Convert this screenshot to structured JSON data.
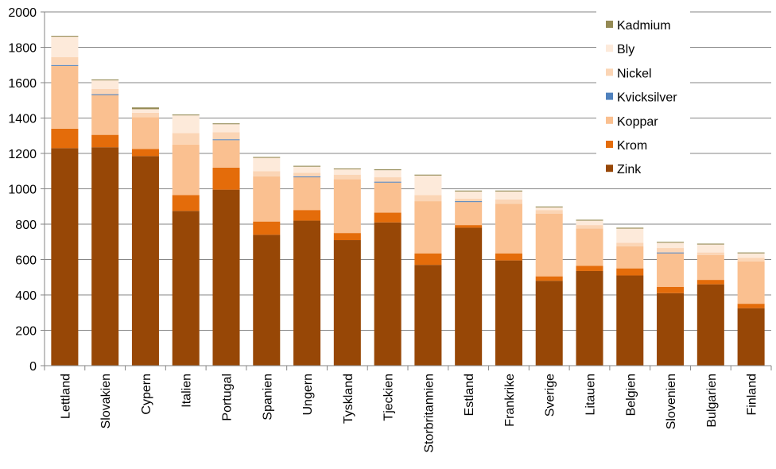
{
  "chart_data": {
    "type": "bar",
    "stacked": true,
    "categories": [
      "Lettland",
      "Slovakien",
      "Cypern",
      "Italien",
      "Portugal",
      "Spanien",
      "Ungern",
      "Tyskland",
      "Tjeckien",
      "Storbritannien",
      "Estland",
      "Frankrike",
      "Sverige",
      "Litauen",
      "Belgien",
      "Slovenien",
      "Bulgarien",
      "Finland"
    ],
    "series": [
      {
        "name": "Zink",
        "color": "#974706",
        "values": [
          1230,
          1235,
          1185,
          875,
          995,
          740,
          820,
          710,
          810,
          570,
          780,
          595,
          480,
          535,
          510,
          410,
          460,
          325
        ]
      },
      {
        "name": "Krom",
        "color": "#E46C0A",
        "values": [
          110,
          70,
          40,
          90,
          125,
          75,
          60,
          40,
          55,
          65,
          15,
          40,
          25,
          30,
          40,
          35,
          25,
          25
        ]
      },
      {
        "name": "Koppar",
        "color": "#FAC090",
        "values": [
          355,
          225,
          180,
          285,
          155,
          255,
          185,
          305,
          170,
          295,
          130,
          280,
          355,
          210,
          125,
          190,
          140,
          240
        ]
      },
      {
        "name": "Kvicksilver",
        "color": "#4F81BD",
        "values": [
          5,
          5,
          0,
          0,
          5,
          0,
          5,
          0,
          5,
          0,
          5,
          0,
          0,
          0,
          0,
          5,
          0,
          0
        ]
      },
      {
        "name": "Nickel",
        "color": "#FBD5B5",
        "values": [
          45,
          30,
          25,
          65,
          40,
          30,
          20,
          25,
          25,
          35,
          15,
          25,
          20,
          20,
          20,
          25,
          15,
          20
        ]
      },
      {
        "name": "Bly",
        "color": "#FDEADA",
        "values": [
          115,
          48,
          20,
          100,
          45,
          75,
          35,
          30,
          40,
          110,
          40,
          45,
          15,
          25,
          80,
          30,
          45,
          25
        ]
      },
      {
        "name": "Kadmium",
        "color": "#948A54",
        "values": [
          5,
          5,
          10,
          5,
          5,
          5,
          5,
          5,
          5,
          5,
          5,
          5,
          5,
          5,
          5,
          5,
          5,
          5
        ]
      }
    ],
    "ylim": [
      0,
      2000
    ],
    "yticks": [
      0,
      200,
      400,
      600,
      800,
      1000,
      1200,
      1400,
      1600,
      1800,
      2000
    ],
    "grid": true,
    "legend": {
      "placement": "top-right",
      "order": [
        "Kadmium",
        "Bly",
        "Nickel",
        "Kvicksilver",
        "Koppar",
        "Krom",
        "Zink"
      ]
    },
    "title": "",
    "xlabel": "",
    "ylabel": ""
  }
}
